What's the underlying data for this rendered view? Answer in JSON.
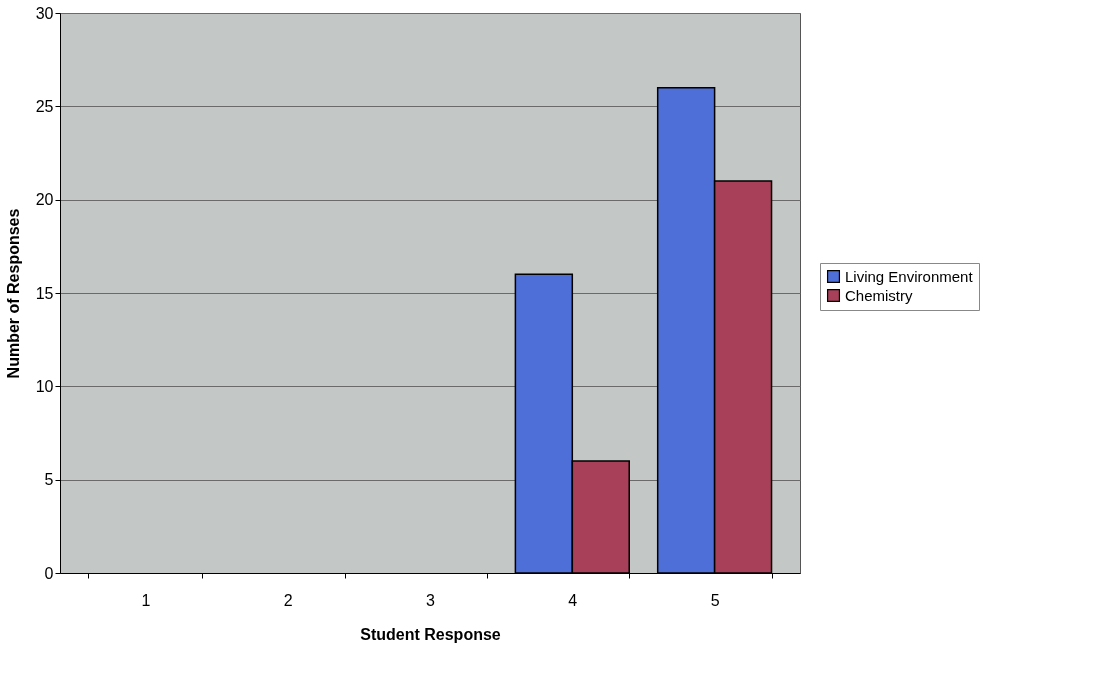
{
  "chart_data": {
    "type": "bar",
    "xlabel": "Student Response",
    "ylabel": "Number of Responses",
    "categories": [
      "1",
      "2",
      "3",
      "4",
      "5"
    ],
    "series": [
      {
        "name": "Living Environment",
        "color": "#4f6fd8",
        "values": [
          0,
          0,
          0,
          16,
          26
        ]
      },
      {
        "name": "Chemistry",
        "color": "#a8405a",
        "values": [
          0,
          0,
          0,
          6,
          21
        ]
      }
    ],
    "ylim": [
      0,
      30
    ],
    "yticks": [
      0,
      5,
      10,
      15,
      20,
      25,
      30
    ],
    "grid": "y",
    "legend": "right"
  }
}
